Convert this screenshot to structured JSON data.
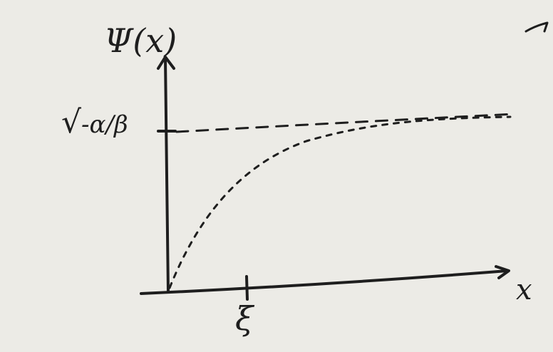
{
  "diagram": {
    "y_axis_label": "Ψ(x)",
    "x_axis_label": "x",
    "x_tick_label": "ξ",
    "asymptote_label": "√-α/β",
    "asymptote_radical": "√",
    "asymptote_expr": "-α/β"
  },
  "colors": {
    "paper": "#ecebe6",
    "ink": "#1e1e1e"
  }
}
